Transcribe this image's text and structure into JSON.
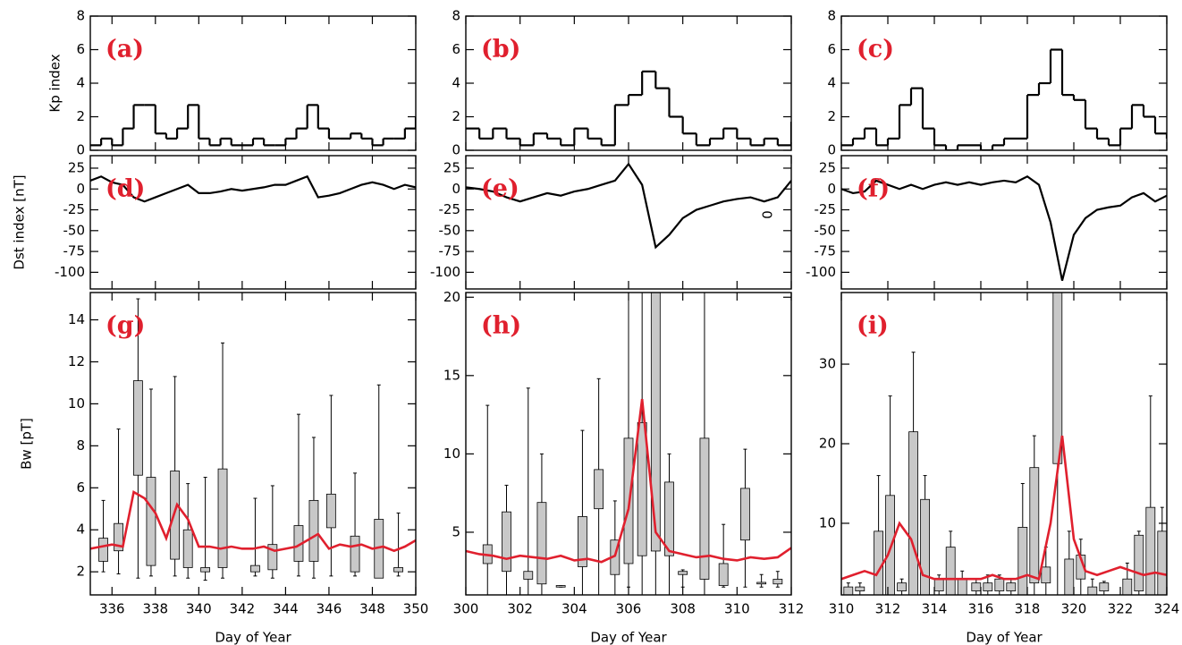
{
  "chart_data": [
    {
      "type": "step",
      "panel_label": "(a)",
      "ylabel": "Kp index",
      "color": "#000000",
      "xlim": [
        335,
        350
      ],
      "ylim": [
        0,
        8
      ],
      "yticks": [
        0,
        2,
        4,
        6,
        8
      ],
      "x": [
        335,
        335.5,
        336,
        336.5,
        337,
        337.5,
        338,
        338.5,
        339,
        339.5,
        340,
        340.5,
        341,
        341.5,
        342,
        342.5,
        343,
        343.5,
        344,
        344.5,
        345,
        345.5,
        346,
        346.5,
        347,
        347.5,
        348,
        348.5,
        349,
        349.5,
        350
      ],
      "values": [
        0.3,
        0.7,
        0.3,
        1.3,
        2.7,
        2.7,
        1,
        0.7,
        1.3,
        2.7,
        0.7,
        0.3,
        0.7,
        0.3,
        0.3,
        0.7,
        0.3,
        0.3,
        0.7,
        1.3,
        2.7,
        1.3,
        0.7,
        0.7,
        1,
        0.7,
        0.3,
        0.7,
        0.7,
        1.3,
        2
      ]
    },
    {
      "type": "step",
      "panel_label": "(b)",
      "color": "#000000",
      "xlim": [
        300,
        312
      ],
      "ylim": [
        0,
        8
      ],
      "yticks": [
        0,
        2,
        4,
        6,
        8
      ],
      "x": [
        300,
        300.5,
        301,
        301.5,
        302,
        302.5,
        303,
        303.5,
        304,
        304.5,
        305,
        305.5,
        306,
        306.5,
        307,
        307.5,
        308,
        308.5,
        309,
        309.5,
        310,
        310.5,
        311,
        311.5,
        312
      ],
      "values": [
        1.3,
        0.7,
        1.3,
        0.7,
        0.3,
        1,
        0.7,
        0.3,
        1.3,
        0.7,
        0.3,
        2.7,
        3.3,
        4.7,
        3.7,
        2,
        1,
        0.3,
        0.7,
        1.3,
        0.7,
        0.3,
        0.7,
        0.3,
        1.7
      ]
    },
    {
      "type": "step",
      "panel_label": "(c)",
      "color": "#000000",
      "xlim": [
        310,
        324
      ],
      "ylim": [
        0,
        8
      ],
      "yticks": [
        0,
        2,
        4,
        6,
        8
      ],
      "x": [
        310,
        310.5,
        311,
        311.5,
        312,
        312.5,
        313,
        313.5,
        314,
        314.5,
        315,
        315.5,
        316,
        316.5,
        317,
        317.5,
        318,
        318.5,
        319,
        319.5,
        320,
        320.5,
        321,
        321.5,
        322,
        322.5,
        323,
        323.5,
        324
      ],
      "values": [
        0.3,
        0.7,
        1.3,
        0.3,
        0.7,
        2.7,
        3.7,
        1.3,
        0.3,
        0,
        0.3,
        0.3,
        0,
        0.3,
        0.7,
        0.7,
        3.3,
        4,
        6,
        3.3,
        3,
        1.3,
        0.7,
        0.3,
        1.3,
        2.7,
        2,
        1,
        0.7
      ]
    },
    {
      "type": "line",
      "panel_label": "(d)",
      "ylabel": "Dst index [nT]",
      "color": "#000000",
      "xlim": [
        335,
        350
      ],
      "ylim": [
        -120,
        40
      ],
      "yticks": [
        -100,
        -75,
        -50,
        -25,
        0,
        25
      ],
      "x": [
        335,
        335.5,
        336,
        336.5,
        337,
        337.5,
        338,
        338.5,
        339,
        339.5,
        340,
        340.5,
        341,
        341.5,
        342,
        342.5,
        343,
        343.5,
        344,
        344.5,
        345,
        345.5,
        346,
        346.5,
        347,
        347.5,
        348,
        348.5,
        349,
        349.5,
        350
      ],
      "values": [
        10,
        15,
        8,
        5,
        -10,
        -15,
        -10,
        -5,
        0,
        5,
        -5,
        -5,
        -3,
        0,
        -2,
        0,
        2,
        5,
        5,
        10,
        15,
        -10,
        -8,
        -5,
        0,
        5,
        8,
        5,
        0,
        5,
        2
      ]
    },
    {
      "type": "line",
      "panel_label": "(e)",
      "annotation": "0",
      "color": "#000000",
      "xlim": [
        300,
        312
      ],
      "ylim": [
        -120,
        40
      ],
      "yticks": [
        -100,
        -75,
        -50,
        -25,
        0,
        25
      ],
      "x": [
        300,
        300.5,
        301,
        301.5,
        302,
        302.5,
        303,
        303.5,
        304,
        304.5,
        305,
        305.5,
        306,
        306.5,
        307,
        307.5,
        308,
        308.5,
        309,
        309.5,
        310,
        310.5,
        311,
        311.5,
        312
      ],
      "values": [
        2,
        0,
        -3,
        -10,
        -15,
        -10,
        -5,
        -8,
        -3,
        0,
        5,
        10,
        30,
        5,
        -70,
        -55,
        -35,
        -25,
        -20,
        -15,
        -12,
        -10,
        -15,
        -10,
        10
      ]
    },
    {
      "type": "line",
      "panel_label": "(f)",
      "color": "#000000",
      "xlim": [
        310,
        324
      ],
      "ylim": [
        -120,
        40
      ],
      "yticks": [
        -100,
        -75,
        -50,
        -25,
        0,
        25
      ],
      "x": [
        310,
        310.5,
        311,
        311.5,
        312,
        312.5,
        313,
        313.5,
        314,
        314.5,
        315,
        315.5,
        316,
        316.5,
        317,
        317.5,
        318,
        318.5,
        319,
        319.5,
        320,
        320.5,
        321,
        321.5,
        322,
        322.5,
        323,
        323.5,
        324
      ],
      "values": [
        0,
        -5,
        -3,
        10,
        5,
        0,
        5,
        0,
        5,
        8,
        5,
        8,
        5,
        8,
        10,
        8,
        15,
        5,
        -40,
        -110,
        -55,
        -35,
        -25,
        -22,
        -20,
        -10,
        -5,
        -15,
        -8
      ]
    },
    {
      "type": "box",
      "panel_label": "(g)",
      "ylabel": "Bw [pT]",
      "xlabel": "Day of Year",
      "box_color": "#c8c8c8",
      "xlim": [
        335,
        350
      ],
      "ylim": [
        0.9,
        15.3
      ],
      "xticks": [
        336,
        338,
        340,
        342,
        344,
        346,
        348,
        350
      ],
      "yticks": [
        2,
        4,
        6,
        8,
        10,
        12,
        14
      ],
      "boxes": {
        "x": [
          335.6,
          336.3,
          337.2,
          337.8,
          338.9,
          339.5,
          340.3,
          341.1,
          342.6,
          343.4,
          344.6,
          345.3,
          346.1,
          347.2,
          348.3,
          349.2
        ],
        "low": [
          2,
          1.9,
          1.7,
          1.8,
          1.8,
          1.7,
          1.6,
          1.7,
          1.8,
          1.7,
          1.8,
          1.7,
          1.8,
          1.8,
          1.8,
          1.8
        ],
        "q1": [
          2.5,
          3.0,
          6.6,
          2.3,
          2.6,
          2.2,
          2.0,
          2.2,
          2.0,
          2.1,
          2.5,
          2.5,
          4.1,
          2.0,
          1.7,
          2.0
        ],
        "q3": [
          3.6,
          4.3,
          11.1,
          6.5,
          6.8,
          4.0,
          2.2,
          6.9,
          2.3,
          3.3,
          4.2,
          5.4,
          5.7,
          3.7,
          4.5,
          2.2
        ],
        "high": [
          5.4,
          8.8,
          15,
          10.7,
          11.3,
          6.2,
          6.5,
          12.9,
          5.5,
          6.1,
          9.5,
          8.4,
          10.4,
          6.7,
          10.9,
          4.8
        ]
      },
      "line": {
        "color": "#e0202e",
        "x": [
          335,
          335.5,
          336,
          336.5,
          337,
          337.5,
          338,
          338.5,
          339,
          339.5,
          340,
          340.5,
          341,
          341.5,
          342,
          342.5,
          343,
          343.5,
          344,
          344.5,
          345,
          345.5,
          346,
          346.5,
          347,
          347.5,
          348,
          348.5,
          349,
          349.5,
          350
        ],
        "values": [
          3.1,
          3.2,
          3.3,
          3.2,
          5.8,
          5.5,
          4.8,
          3.6,
          5.2,
          4.5,
          3.2,
          3.2,
          3.1,
          3.2,
          3.1,
          3.1,
          3.2,
          3.0,
          3.1,
          3.2,
          3.5,
          3.8,
          3.1,
          3.3,
          3.2,
          3.3,
          3.1,
          3.2,
          3.0,
          3.2,
          3.5
        ]
      }
    },
    {
      "type": "box",
      "panel_label": "(h)",
      "xlabel": "Day of Year",
      "box_color": "#c8c8c8",
      "xlim": [
        300,
        312
      ],
      "ylim": [
        1,
        20.3
      ],
      "xticks": [
        300,
        302,
        304,
        306,
        308,
        310,
        312
      ],
      "yticks": [
        5,
        10,
        15,
        20
      ],
      "boxes": {
        "x": [
          300.8,
          301.5,
          302.3,
          302.8,
          303.5,
          304.3,
          304.9,
          305.5,
          306.0,
          306.5,
          307.0,
          307.5,
          308.0,
          308.8,
          309.5,
          310.3,
          310.9,
          311.5
        ],
        "low": [
          1,
          1,
          1,
          1,
          1.5,
          1,
          1,
          1,
          1.5,
          1,
          1,
          1,
          1.5,
          1,
          1.5,
          1.5,
          1.5,
          1.5
        ],
        "q1": [
          3,
          2.5,
          2,
          1.7,
          1.5,
          2.8,
          6.5,
          2.3,
          3,
          3.5,
          3.8,
          3.5,
          2.3,
          2,
          1.6,
          4.5,
          1.7,
          1.7
        ],
        "q3": [
          4.2,
          6.3,
          2.5,
          6.9,
          1.6,
          6,
          9,
          4.5,
          11,
          12,
          25,
          8.2,
          2.5,
          11,
          3,
          7.8,
          1.8,
          2
        ],
        "high": [
          13.1,
          8,
          14.2,
          10,
          1.6,
          11.5,
          14.8,
          7,
          25,
          25,
          25,
          10,
          2.6,
          25,
          5.5,
          10.3,
          2.3,
          2.5
        ]
      },
      "line": {
        "color": "#e0202e",
        "x": [
          300,
          300.5,
          301,
          301.5,
          302,
          302.5,
          303,
          303.5,
          304,
          304.5,
          305,
          305.5,
          306,
          306.5,
          307,
          307.5,
          308,
          308.5,
          309,
          309.5,
          310,
          310.5,
          311,
          311.5,
          312
        ],
        "values": [
          3.8,
          3.6,
          3.5,
          3.3,
          3.5,
          3.4,
          3.3,
          3.5,
          3.2,
          3.3,
          3.1,
          3.5,
          6.5,
          13.5,
          5,
          3.8,
          3.6,
          3.4,
          3.5,
          3.3,
          3.2,
          3.4,
          3.3,
          3.4,
          4
        ]
      }
    },
    {
      "type": "box",
      "panel_label": "(i)",
      "xlabel": "Day of Year",
      "box_color": "#c8c8c8",
      "xlim": [
        310,
        324
      ],
      "ylim": [
        1,
        39
      ],
      "xticks": [
        310,
        312,
        314,
        316,
        318,
        320,
        322,
        324
      ],
      "yticks": [
        10,
        20,
        30
      ],
      "boxes": {
        "x": [
          310.3,
          310.8,
          311.6,
          312.1,
          312.6,
          313.1,
          313.6,
          314.2,
          314.7,
          315.2,
          315.8,
          316.3,
          316.8,
          317.3,
          317.8,
          318.3,
          318.8,
          319.3,
          319.8,
          320.3,
          320.8,
          321.3,
          322.3,
          322.8,
          323.3,
          323.8
        ],
        "low": [
          1,
          1,
          1,
          1,
          1,
          1,
          1,
          1,
          1,
          1,
          1,
          1,
          1,
          1,
          1,
          1,
          1,
          1,
          1,
          1,
          1,
          1,
          1,
          1,
          1,
          1
        ],
        "q1": [
          1,
          1.5,
          1,
          1,
          1.5,
          1,
          1,
          1.5,
          1,
          1,
          1.5,
          1.5,
          1.5,
          1.5,
          1,
          2.5,
          2.5,
          17.5,
          1,
          3,
          1,
          1.5,
          1,
          1.5,
          1,
          1
        ],
        "q3": [
          2,
          2,
          9,
          13.5,
          2.5,
          21.5,
          13,
          3,
          7,
          3,
          2.5,
          2.5,
          3,
          2.5,
          9.5,
          17,
          4.5,
          45,
          5.5,
          6,
          2,
          2.5,
          3,
          8.5,
          12,
          9
        ],
        "high": [
          2.5,
          2.5,
          16,
          26,
          3,
          31.5,
          16,
          3.5,
          9,
          4,
          3,
          3.5,
          3.5,
          3,
          15,
          21,
          7,
          45,
          9,
          8,
          3,
          2.7,
          5,
          9,
          26,
          12
        ]
      },
      "line": {
        "color": "#e0202e",
        "x": [
          310,
          310.5,
          311,
          311.5,
          312,
          312.5,
          313,
          313.5,
          314,
          314.5,
          315,
          315.5,
          316,
          316.5,
          317,
          317.5,
          318,
          318.5,
          319,
          319.5,
          320,
          320.5,
          321,
          321.5,
          322,
          322.5,
          323,
          323.5,
          324
        ],
        "values": [
          3,
          3.5,
          4,
          3.5,
          6,
          10,
          8,
          3.5,
          3,
          3,
          3,
          3,
          3,
          3.5,
          3,
          3,
          3.5,
          3,
          10,
          21,
          8,
          4,
          3.5,
          4,
          4.5,
          4,
          3.5,
          3.8,
          3.5
        ]
      }
    }
  ]
}
